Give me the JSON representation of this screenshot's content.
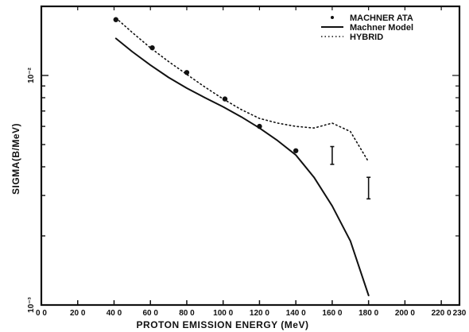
{
  "chart_data": {
    "type": "line",
    "title": "",
    "xlabel": "PROTON EMISSION ENERGY  (MeV)",
    "ylabel": "SIGMA(B/MeV)",
    "yscale": "log",
    "xlim": [
      0,
      230
    ],
    "ylim": [
      0.001,
      0.02
    ],
    "x_ticks": [
      0,
      20,
      40,
      60,
      80,
      100,
      120,
      140,
      160,
      180,
      200,
      220,
      230
    ],
    "x_tick_labels": [
      "0 0",
      "20 0",
      "40 0",
      "60 0",
      "80 0",
      "100 0",
      "120 0",
      "140 0",
      "160 0",
      "180 0",
      "200 0",
      "220 0",
      "230"
    ],
    "y_ticks": [
      0.001,
      0.01
    ],
    "y_tick_labels": [
      "10⁻³",
      "10⁻²"
    ],
    "grid": false,
    "legend": "top-right",
    "series": [
      {
        "name": "MACHNER   ATA",
        "kind": "points",
        "points": [
          {
            "x": 41,
            "y": 0.0175
          },
          {
            "x": 61,
            "y": 0.0132
          },
          {
            "x": 80,
            "y": 0.0103
          },
          {
            "x": 101,
            "y": 0.0079
          },
          {
            "x": 120,
            "y": 0.006
          },
          {
            "x": 140,
            "y": 0.0047
          },
          {
            "x": 160,
            "y": 0.0045,
            "err_low": 0.0041,
            "err_high": 0.0049
          },
          {
            "x": 180,
            "y": 0.0032,
            "err_low": 0.0029,
            "err_high": 0.0036
          }
        ]
      },
      {
        "name": "Machner Model",
        "kind": "solid",
        "x": [
          41,
          50,
          60,
          70,
          80,
          90,
          100,
          110,
          120,
          130,
          140,
          150,
          160,
          170,
          180
        ],
        "y": [
          0.0145,
          0.0127,
          0.0111,
          0.0098,
          0.0088,
          0.008,
          0.0073,
          0.0066,
          0.0059,
          0.0052,
          0.0045,
          0.0036,
          0.0027,
          0.0019,
          0.0011
        ]
      },
      {
        "name": "HYBRID",
        "kind": "dotted",
        "x": [
          41,
          50,
          60,
          70,
          80,
          90,
          100,
          110,
          120,
          130,
          140,
          150,
          160,
          170,
          180
        ],
        "y": [
          0.0178,
          0.0154,
          0.0132,
          0.0115,
          0.0101,
          0.0089,
          0.0079,
          0.0071,
          0.0065,
          0.0062,
          0.006,
          0.0059,
          0.0062,
          0.0057,
          0.0042
        ]
      }
    ]
  }
}
